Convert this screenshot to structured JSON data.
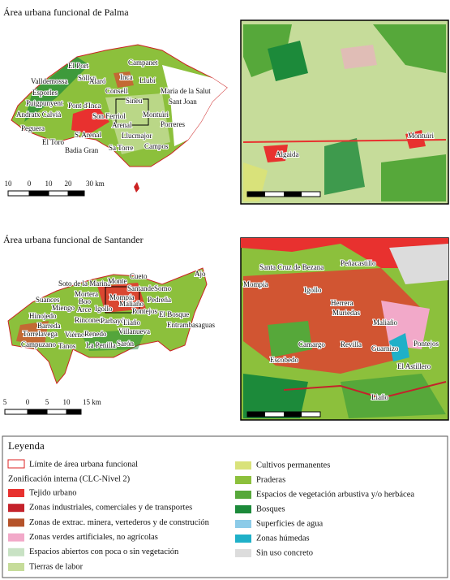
{
  "panels": [
    {
      "title": "Área urbana funcional de Palma",
      "place_labels": [
        "El Port",
        "Sóller",
        "Campanet",
        "Valldemossa",
        "Alaró",
        "Inca",
        "Llubí",
        "Esporles",
        "Consell",
        "Maria de la Salut",
        "Puigpunyent",
        "Pont d'Inca",
        "Sineu",
        "Sant Joan",
        "Andratx Calvià",
        "Son Ferriol",
        "Montuïri",
        "Peguera",
        "Arenal",
        "Porreres",
        "S' Arenal",
        "Llucmajor",
        "El Toro",
        "Badia Gran",
        "Sa Torre",
        "Campos"
      ],
      "scale_labels": [
        "10",
        "0",
        "10",
        "20",
        "30 km"
      ],
      "inset_labels": [
        "Algaida",
        "Montuïri"
      ]
    },
    {
      "title": "Área urbana funcional de Santander",
      "place_labels": [
        "Soto de la Marina",
        "Monte",
        "Cueto",
        "Santander",
        "Somo",
        "Ajo",
        "Mortera",
        "Mompía",
        "Suances",
        "Boo",
        "Maliaño",
        "Pedreña",
        "Miengo",
        "Arce",
        "Igollo",
        "Pontejos",
        "Hinojedo",
        "El Bosque",
        "Barreda",
        "Rinconeda",
        "Parbayón",
        "Liaño",
        "Entrambasaguas",
        "Torrelavega",
        "Viérnoles",
        "Renedo",
        "Villanueva",
        "Campuzano",
        "Tanos",
        "La Penilla",
        "Sarón"
      ],
      "scale_labels": [
        "5",
        "0",
        "5",
        "10",
        "15 km"
      ],
      "inset_labels": [
        "Santa Cruz de Bezana",
        "Peñacastillo",
        "Mompía",
        "Igollo",
        "Herrera",
        "Muriedas",
        "Maliaño",
        "Camargo",
        "Revilla",
        "Guarnizo",
        "Pontejos",
        "El Astillero",
        "Escobedo",
        "Liaño"
      ]
    }
  ],
  "legend": {
    "title": "Leyenda",
    "boundary": "Límite de área urbana funcional",
    "subtitle": "Zonificación interna (CLC-Nivel 2)",
    "items": [
      {
        "label": "Tejido urbano",
        "color": "#e8312f"
      },
      {
        "label": "Zonas industriales, comerciales y de transportes",
        "color": "#c4222b"
      },
      {
        "label": "Zonas de extrac. minera, vertederos y de construción",
        "color": "#b5532a"
      },
      {
        "label": "Zonas verdes artificiales, no agrícolas",
        "color": "#f2a9c9"
      },
      {
        "label": "Espacios abiertos con poca o sin vegetación",
        "color": "#c8e2c4"
      },
      {
        "label": "Tierras de labor",
        "color": "#c6dc9a"
      },
      {
        "label": "Cultivos permanentes",
        "color": "#d9e27a"
      },
      {
        "label": "Praderas",
        "color": "#8cc03c"
      },
      {
        "label": "Espacios de vegetación arbustiva y/o herbácea",
        "color": "#56a83a"
      },
      {
        "label": "Bosques",
        "color": "#1c8a3a"
      },
      {
        "label": "Superficies de agua",
        "color": "#8ccbe8"
      },
      {
        "label": "Zonas húmedas",
        "color": "#1fb0c8"
      },
      {
        "label": "Sin uso concreto",
        "color": "#dcdcdc"
      }
    ]
  }
}
